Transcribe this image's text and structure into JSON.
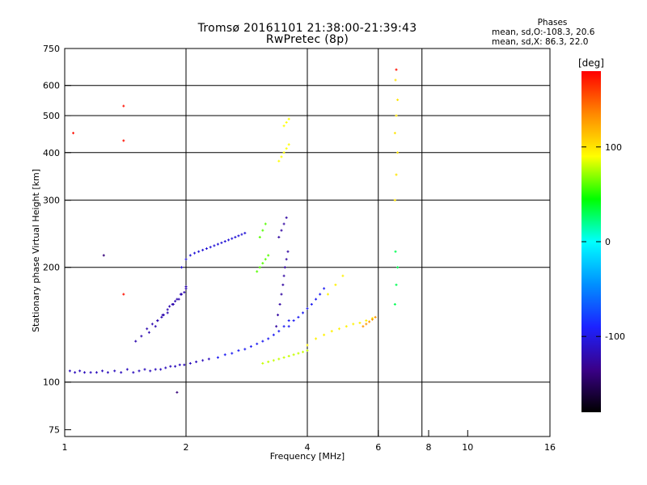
{
  "chart_data": {
    "type": "scatter",
    "title": "Tromsø 20161101 21:38:00-21:39:43",
    "subtitle": "RwPretec (8p)",
    "xlabel": "Frequency [MHz]",
    "ylabel": "Stationary phase Virtual Height [km]",
    "xscale": "log",
    "yscale": "log",
    "xlim": [
      1,
      16
    ],
    "ylim": [
      72,
      750
    ],
    "xticks": [
      1,
      2,
      4,
      6,
      8,
      10,
      16
    ],
    "xtick_labels": [
      "1",
      "2",
      "4",
      "6",
      "8",
      "10",
      "16"
    ],
    "xgrid": [
      2,
      4,
      6,
      7.7
    ],
    "yticks": [
      75,
      100,
      200,
      300,
      400,
      500,
      600,
      750
    ],
    "ytick_labels": [
      "75",
      "100",
      "200",
      "300",
      "400",
      "500",
      "600",
      "750"
    ],
    "ygrid": [
      100,
      200,
      300,
      400,
      500,
      600
    ],
    "grid": true,
    "colorbar": {
      "label": "[deg]",
      "range": [
        -180,
        180
      ],
      "ticks": [
        100,
        0,
        -100
      ],
      "tick_labels": [
        "100",
        "0",
        "-100"
      ],
      "colors": [
        "#000000",
        "#3a0088",
        "#1c22ff",
        "#0090ff",
        "#00ffff",
        "#00ff00",
        "#ffff00",
        "#ff8800",
        "#ff0000"
      ]
    },
    "phases": {
      "title": "Phases",
      "line1": "mean, sd,O:-108.3, 20.6",
      "line2": "mean, sd,X:  86.3, 22.0"
    },
    "series": [
      {
        "phase": -115,
        "x": [
          1.03,
          1.06,
          1.09,
          1.12,
          1.16,
          1.2,
          1.24,
          1.28,
          1.33,
          1.38,
          1.43,
          1.48,
          1.53,
          1.58,
          1.63,
          1.68,
          1.73,
          1.78,
          1.83,
          1.88,
          1.93,
          1.98,
          2.05,
          2.12,
          2.2,
          2.28
        ],
        "y": [
          107,
          106,
          107,
          106,
          106,
          106,
          107,
          106,
          107,
          106,
          108,
          106,
          107,
          108,
          107,
          108,
          108,
          109,
          110,
          110,
          111,
          111,
          112,
          113,
          114,
          115
        ]
      },
      {
        "phase": -120,
        "x": [
          1.5,
          1.55,
          1.6,
          1.65,
          1.7,
          1.75,
          1.8,
          1.85,
          1.9,
          1.95,
          2.0,
          1.62,
          1.68,
          1.74,
          1.8,
          1.86,
          1.92,
          1.98,
          1.7,
          1.76,
          1.82,
          1.88,
          1.94,
          2.0
        ],
        "y": [
          128,
          132,
          138,
          142,
          145,
          150,
          155,
          160,
          165,
          170,
          178,
          135,
          140,
          148,
          152,
          160,
          165,
          172,
          145,
          150,
          158,
          163,
          170,
          176
        ]
      },
      {
        "phase": -105,
        "x": [
          1.95,
          2.0,
          2.05,
          2.1,
          2.15,
          2.2,
          2.25,
          2.3,
          2.35,
          2.4,
          2.45,
          2.5,
          2.55,
          2.6,
          2.65,
          2.7,
          2.75,
          2.8
        ],
        "y": [
          200,
          210,
          215,
          218,
          220,
          222,
          224,
          226,
          228,
          230,
          232,
          234,
          236,
          238,
          240,
          242,
          244,
          246
        ]
      },
      {
        "phase": -95,
        "x": [
          2.4,
          2.5,
          2.6,
          2.7,
          2.8,
          2.9,
          3.0,
          3.1,
          3.2,
          3.3,
          3.4,
          3.5,
          3.6
        ],
        "y": [
          116,
          118,
          119,
          121,
          122,
          124,
          126,
          128,
          130,
          133,
          136,
          140,
          145
        ]
      },
      {
        "phase": -125,
        "x": [
          3.35,
          3.38,
          3.42,
          3.45,
          3.48,
          3.5,
          3.52,
          3.55,
          3.58,
          3.4,
          3.45,
          3.5,
          3.55
        ],
        "y": [
          140,
          150,
          160,
          170,
          180,
          190,
          200,
          210,
          220,
          240,
          250,
          260,
          270
        ]
      },
      {
        "phase": -95,
        "x": [
          3.6,
          3.7,
          3.8,
          3.9,
          4.0,
          4.1,
          4.2,
          4.3,
          4.4
        ],
        "y": [
          140,
          145,
          148,
          152,
          156,
          160,
          165,
          170,
          176
        ]
      },
      {
        "phase": 80,
        "x": [
          3.1,
          3.2,
          3.3,
          3.4,
          3.5,
          3.6,
          3.7,
          3.8,
          3.9,
          4.0
        ],
        "y": [
          112,
          113,
          114,
          115,
          116,
          117,
          118,
          119,
          120,
          121
        ]
      },
      {
        "phase": 60,
        "x": [
          3.0,
          3.05,
          3.1,
          3.15,
          3.2,
          3.05,
          3.1,
          3.15
        ],
        "y": [
          195,
          200,
          205,
          210,
          215,
          240,
          250,
          260
        ]
      },
      {
        "phase": 90,
        "x": [
          3.4,
          3.45,
          3.5,
          3.55,
          3.6,
          3.5,
          3.55,
          3.6
        ],
        "y": [
          380,
          390,
          400,
          410,
          420,
          470,
          480,
          490
        ]
      },
      {
        "phase": 95,
        "x": [
          4.0,
          4.2,
          4.4,
          4.6,
          4.8,
          5.0,
          5.2,
          5.4,
          5.6,
          5.8,
          4.5,
          4.7,
          4.9
        ],
        "y": [
          125,
          130,
          133,
          136,
          138,
          140,
          142,
          143,
          145,
          147,
          170,
          180,
          190
        ]
      },
      {
        "phase": 130,
        "x": [
          5.5,
          5.6,
          5.7,
          5.8,
          5.9
        ],
        "y": [
          140,
          142,
          144,
          146,
          148
        ]
      },
      {
        "phase": 100,
        "x": [
          6.6,
          6.65,
          6.7,
          6.6,
          6.65,
          6.7,
          6.62
        ],
        "y": [
          300,
          350,
          400,
          450,
          500,
          550,
          620
        ]
      },
      {
        "phase": 30,
        "x": [
          6.6,
          6.65,
          6.7,
          6.62
        ],
        "y": [
          160,
          180,
          200,
          220
        ]
      },
      {
        "phase": 175,
        "x": [
          1.4,
          1.05,
          1.4,
          1.4,
          6.65
        ],
        "y": [
          530,
          450,
          430,
          170,
          660
        ]
      },
      {
        "phase": -140,
        "x": [
          1.9,
          1.25
        ],
        "y": [
          94,
          215
        ]
      }
    ]
  }
}
